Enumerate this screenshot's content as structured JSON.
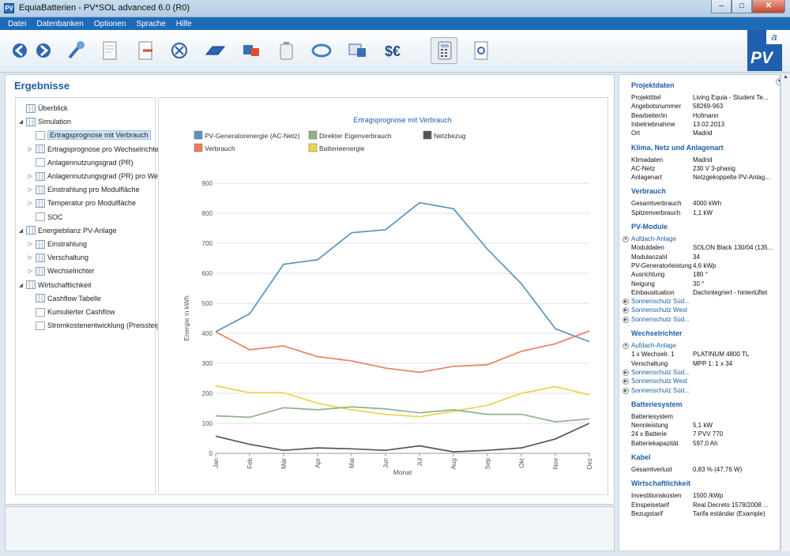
{
  "window": {
    "title": "EquiaBatterien - PV*SOL advanced 6.0 (R0)",
    "minimize": "–",
    "maximize": "□",
    "close": "✕"
  },
  "menu": [
    "Datei",
    "Datenbanken",
    "Optionen",
    "Sprache",
    "Hilfe"
  ],
  "toolbar": [
    "arrow-left-icon",
    "arrow-right-icon",
    "wrench-icon",
    "document-icon",
    "document-export-icon",
    "circle-x-icon",
    "solar-panel-icon",
    "inverter-icon",
    "battery-icon",
    "cable-icon",
    "monitor-icon",
    "currency-icon",
    "calculator-icon",
    "report-icon"
  ],
  "logo": {
    "text": "PV",
    "sup": "a"
  },
  "left": {
    "title": "Ergebnisse"
  },
  "tree": [
    {
      "label": "Überblick",
      "depth": 0,
      "exp": ""
    },
    {
      "label": "Simulation",
      "depth": 0,
      "exp": "◢"
    },
    {
      "label": "Ertragsprognose mit Verbrauch",
      "depth": 1,
      "exp": "",
      "selected": true,
      "chart": true
    },
    {
      "label": "Ertragsprognose pro Wechselrichter",
      "depth": 1,
      "exp": "▷"
    },
    {
      "label": "Anlagennutzungsgrad (PR)",
      "depth": 1,
      "exp": "",
      "chart": true
    },
    {
      "label": "Anlagennutzungsgrad (PR) pro Wech",
      "depth": 1,
      "exp": "▷"
    },
    {
      "label": "Einstrahlung pro Modulfläche",
      "depth": 1,
      "exp": "▷"
    },
    {
      "label": "Temperatur pro Modulfläche",
      "depth": 1,
      "exp": "▷"
    },
    {
      "label": "SOC",
      "depth": 1,
      "exp": "",
      "chart": true
    },
    {
      "label": "Energiebilanz PV-Anlage",
      "depth": 0,
      "exp": "◢"
    },
    {
      "label": "Einstrahlung",
      "depth": 1,
      "exp": "▷"
    },
    {
      "label": "Verschaltung",
      "depth": 1,
      "exp": "▷"
    },
    {
      "label": "Wechselrichter",
      "depth": 1,
      "exp": "▷"
    },
    {
      "label": "Wirtschaftlichkeit",
      "depth": 0,
      "exp": "◢"
    },
    {
      "label": "Cashflow Tabelle",
      "depth": 1,
      "exp": ""
    },
    {
      "label": "Kumulierter Cashflow",
      "depth": 1,
      "exp": "",
      "chart": true
    },
    {
      "label": "Stromkostenentwicklung (Preissteig",
      "depth": 1,
      "exp": "",
      "chart": true
    }
  ],
  "chart_data": {
    "type": "line",
    "title": "Ertragsprognose mit Verbrauch",
    "xlabel": "Monat",
    "ylabel": "Energie in kWh",
    "ylim": [
      0,
      900
    ],
    "yticks": [
      0,
      100,
      200,
      300,
      400,
      500,
      600,
      700,
      800,
      900
    ],
    "categories": [
      "Jan",
      "Feb",
      "Mär",
      "Apr",
      "Mai",
      "Jun",
      "Jul",
      "Aug",
      "Sep",
      "Okt",
      "Nov",
      "Dez"
    ],
    "grid": true,
    "legend": "top",
    "series": [
      {
        "name": "PV-Generatorenergie (AC-Netz)",
        "color": "#5a95bf",
        "values": [
          405,
          465,
          630,
          645,
          735,
          745,
          835,
          815,
          680,
          565,
          415,
          372
        ]
      },
      {
        "name": "Direkter Eigenverbrauch",
        "color": "#8fb18a",
        "values": [
          125,
          120,
          152,
          145,
          155,
          148,
          135,
          145,
          130,
          130,
          105,
          115
        ]
      },
      {
        "name": "Netzbezug",
        "color": "#555555",
        "values": [
          57,
          30,
          10,
          18,
          15,
          10,
          25,
          5,
          10,
          18,
          48,
          100
        ]
      },
      {
        "name": "Verbrauch",
        "color": "#e8805a",
        "values": [
          405,
          345,
          358,
          322,
          308,
          284,
          270,
          290,
          295,
          340,
          365,
          408
        ]
      },
      {
        "name": "Batterieenergie",
        "color": "#f1d24b",
        "values": [
          225,
          202,
          202,
          167,
          145,
          130,
          122,
          140,
          160,
          200,
          222,
          195
        ]
      }
    ]
  },
  "panel": [
    {
      "type": "sec",
      "text": "Projektdaten"
    },
    {
      "type": "row",
      "k": "Projekttitel",
      "v": "Living Equia - Student Te..."
    },
    {
      "type": "row",
      "k": "Angebotsnummer",
      "v": "58269-963"
    },
    {
      "type": "row",
      "k": "Bearbeiter/in",
      "v": "Hofmann"
    },
    {
      "type": "row",
      "k": "Inbetriebnahme",
      "v": "13.02.2013"
    },
    {
      "type": "row",
      "k": "Ort",
      "v": "Madrid"
    },
    {
      "type": "sec",
      "text": "Klima, Netz und Anlagenart"
    },
    {
      "type": "row",
      "k": "Klimadaten",
      "v": "Madrid"
    },
    {
      "type": "row",
      "k": "AC-Netz",
      "v": "230 V  3-phasig"
    },
    {
      "type": "row",
      "k": "Anlagenart",
      "v": "Netzgekoppelte PV-Anlag..."
    },
    {
      "type": "sec",
      "text": "Verbrauch"
    },
    {
      "type": "row",
      "k": "Gesamtverbrauch",
      "v": "4000 kWh"
    },
    {
      "type": "row",
      "k": "Spitzenverbrauch",
      "v": "1,1 kW"
    },
    {
      "type": "sec",
      "text": "PV-Module"
    },
    {
      "type": "link",
      "text": "Aufdach-Anlage",
      "bullet": "▼"
    },
    {
      "type": "row",
      "k": "Moduldaten",
      "v": "SOLON Black 130/04 (135..."
    },
    {
      "type": "row",
      "k": "Modulanzahl",
      "v": "34"
    },
    {
      "type": "row",
      "k": "PV-Generatorleistung",
      "v": "4,6 kWp"
    },
    {
      "type": "row",
      "k": "Ausrichtung",
      "v": "180 °"
    },
    {
      "type": "row",
      "k": "Neigung",
      "v": "30 °"
    },
    {
      "type": "row",
      "k": "Einbausituation",
      "v": "Dachintegriert - hinterlüftet"
    },
    {
      "type": "link",
      "text": "Sonnenschutz Süd...",
      "bullet": "▶"
    },
    {
      "type": "link",
      "text": "Sonnenschutz West",
      "bullet": "▶"
    },
    {
      "type": "link",
      "text": "Sonnenschutz Süd...",
      "bullet": "▶"
    },
    {
      "type": "sec",
      "text": "Wechselrichter"
    },
    {
      "type": "link",
      "text": "Aufdach-Anlage",
      "bullet": "▼"
    },
    {
      "type": "row",
      "k": "1 x Wechselr.  1",
      "v": "PLATINUM 4800 TL"
    },
    {
      "type": "row",
      "k": "Verschaltung",
      "v": "MPP 1:  1 x 34"
    },
    {
      "type": "link",
      "text": "Sonnenschutz Süd...",
      "bullet": "▶"
    },
    {
      "type": "link",
      "text": "Sonnenschutz West",
      "bullet": "▶"
    },
    {
      "type": "link",
      "text": "Sonnenschutz Süd...",
      "bullet": "▶"
    },
    {
      "type": "sec",
      "text": "Batteriesystem"
    },
    {
      "type": "row",
      "k": "Batteriesystem",
      "v": ""
    },
    {
      "type": "row",
      "k": "Nennleistung",
      "v": "5,1 kW"
    },
    {
      "type": "row",
      "k": "24 x Batterie",
      "v": "  7 PVV 770"
    },
    {
      "type": "row",
      "k": "Batteriekapazität",
      "v": "597,0 Ah"
    },
    {
      "type": "sec",
      "text": "Kabel"
    },
    {
      "type": "row",
      "k": "Gesamtverlust",
      "v": "0,83 % (47,76 W)"
    },
    {
      "type": "sec",
      "text": "Wirtschaftlichkeit"
    },
    {
      "type": "row",
      "k": "Investitionskosten",
      "v": "1500 /kWp"
    },
    {
      "type": "row",
      "k": "Einspeisetarif",
      "v": "Real Decreto 1578/2008 ..."
    },
    {
      "type": "row",
      "k": "Bezugstarif",
      "v": "Tarifa estándar (Example)"
    }
  ]
}
